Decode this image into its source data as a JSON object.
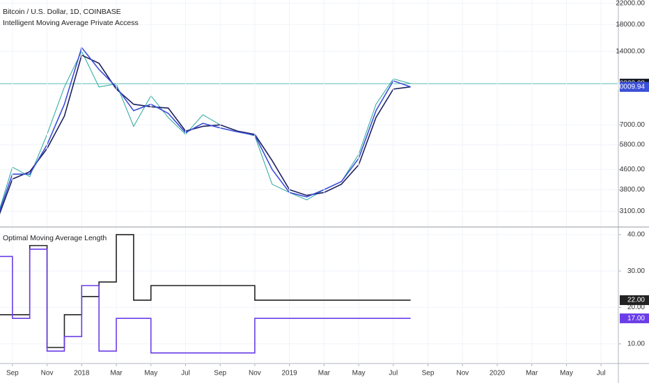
{
  "chart_data": [
    {
      "type": "line",
      "title": "Bitcoin / U.S. Dollar, 1D, COINBASE",
      "subtitle": "Intelligent Moving Average Private Access",
      "log": true,
      "x": [
        "2017-08",
        "2017-09",
        "2017-10",
        "2017-11",
        "2017-12",
        "2018-01",
        "2018-02",
        "2018-03",
        "2018-04",
        "2018-05",
        "2018-06",
        "2018-07",
        "2018-08",
        "2018-09",
        "2018-10",
        "2018-11",
        "2018-12",
        "2019-01",
        "2019-02",
        "2019-03",
        "2019-04",
        "2019-05",
        "2019-06",
        "2019-07",
        "2019-08"
      ],
      "xlim": [
        "2017-08",
        "2020-08"
      ],
      "ylim": [
        2690,
        22700
      ],
      "yticks": [
        {
          "value": 3100,
          "label": "3100.00"
        },
        {
          "value": 3800,
          "label": "3800.00"
        },
        {
          "value": 4600,
          "label": "4600.00"
        },
        {
          "value": 5800,
          "label": "5800.00"
        },
        {
          "value": 7000,
          "label": "7000.00"
        },
        {
          "value": 14000,
          "label": "14000.00"
        },
        {
          "value": 18000,
          "label": "18000.00"
        },
        {
          "value": 22000,
          "label": "22000.00"
        }
      ],
      "series": [
        {
          "color": "#26a69a",
          "values": [
            2750,
            4700,
            4300,
            6400,
            10000,
            14000,
            10000,
            10300,
            6900,
            9200,
            7500,
            6400,
            7700,
            7000,
            6600,
            6300,
            4000,
            3700,
            3450,
            3800,
            4100,
            5300,
            8500,
            10800,
            10322.08
          ]
        },
        {
          "color": "#1c1f5e",
          "values": [
            2700,
            4200,
            4500,
            5600,
            7600,
            13500,
            12500,
            9800,
            8500,
            8300,
            8200,
            6600,
            6900,
            7000,
            6600,
            6400,
            5000,
            3800,
            3600,
            3700,
            4000,
            4800,
            7500,
            9800,
            10016.57
          ]
        },
        {
          "color": "#3a4fd8",
          "values": [
            2750,
            4400,
            4400,
            5800,
            8500,
            14500,
            11800,
            10000,
            8000,
            8500,
            7800,
            6500,
            7100,
            6800,
            6550,
            6350,
            4600,
            3700,
            3550,
            3800,
            4100,
            5100,
            8000,
            10600,
            10009.94
          ]
        }
      ]
    },
    {
      "type": "step",
      "title": "Optimal Moving Average Length",
      "x": [
        "2017-08",
        "2017-09",
        "2017-10",
        "2017-11",
        "2017-12",
        "2018-01",
        "2018-02",
        "2018-03",
        "2018-04",
        "2018-05",
        "2018-06",
        "2018-07",
        "2018-08",
        "2018-09",
        "2018-10",
        "2018-11",
        "2018-12",
        "2019-01",
        "2019-02",
        "2019-03",
        "2019-04",
        "2019-05",
        "2019-06",
        "2019-07",
        "2019-08"
      ],
      "xlim": [
        "2017-08",
        "2020-08"
      ],
      "ylim": [
        4.6,
        41.9
      ],
      "yticks": [
        {
          "value": 10,
          "label": "10.00"
        },
        {
          "value": 20,
          "label": "20.00"
        },
        {
          "value": 30,
          "label": "30.00"
        },
        {
          "value": 40,
          "label": "40.00"
        }
      ],
      "xticks": [
        {
          "value": "2017-09",
          "label": "Sep"
        },
        {
          "value": "2017-11",
          "label": "Nov"
        },
        {
          "value": "2018-01",
          "label": "2018"
        },
        {
          "value": "2018-03",
          "label": "Mar"
        },
        {
          "value": "2018-05",
          "label": "May"
        },
        {
          "value": "2018-07",
          "label": "Jul"
        },
        {
          "value": "2018-09",
          "label": "Sep"
        },
        {
          "value": "2018-11",
          "label": "Nov"
        },
        {
          "value": "2019-01",
          "label": "2019"
        },
        {
          "value": "2019-03",
          "label": "Mar"
        },
        {
          "value": "2019-05",
          "label": "May"
        },
        {
          "value": "2019-07",
          "label": "Jul"
        },
        {
          "value": "2019-09",
          "label": "Sep"
        },
        {
          "value": "2019-11",
          "label": "Nov"
        },
        {
          "value": "2020-01",
          "label": "2020"
        },
        {
          "value": "2020-03",
          "label": "Mar"
        },
        {
          "value": "2020-05",
          "label": "May"
        },
        {
          "value": "2020-07",
          "label": "Jul"
        }
      ],
      "series": [
        {
          "color": "#222222",
          "values": [
            18,
            18,
            37,
            9,
            18,
            23,
            27,
            40,
            22,
            26,
            26,
            26,
            26,
            26,
            26,
            22,
            22,
            22,
            22,
            22,
            22,
            22,
            22,
            22,
            22
          ],
          "value_labels": [
            null,
            null,
            null,
            null,
            null,
            null,
            null,
            null,
            null,
            null,
            null,
            null,
            null,
            null,
            null,
            null,
            null,
            null,
            null,
            null,
            null,
            null,
            null,
            null,
            "22.00"
          ]
        },
        {
          "color": "#6a3de8",
          "values": [
            34,
            17,
            36,
            8,
            12,
            26,
            8,
            17,
            17,
            7.5,
            7.5,
            7.5,
            7.5,
            7.5,
            7.5,
            17,
            17,
            17,
            17,
            17,
            17,
            17,
            17,
            17,
            17
          ],
          "value_labels": [
            null,
            null,
            null,
            null,
            null,
            null,
            null,
            null,
            null,
            null,
            null,
            null,
            null,
            null,
            null,
            null,
            null,
            null,
            null,
            null,
            null,
            null,
            null,
            null,
            "17.00"
          ]
        }
      ]
    }
  ]
}
